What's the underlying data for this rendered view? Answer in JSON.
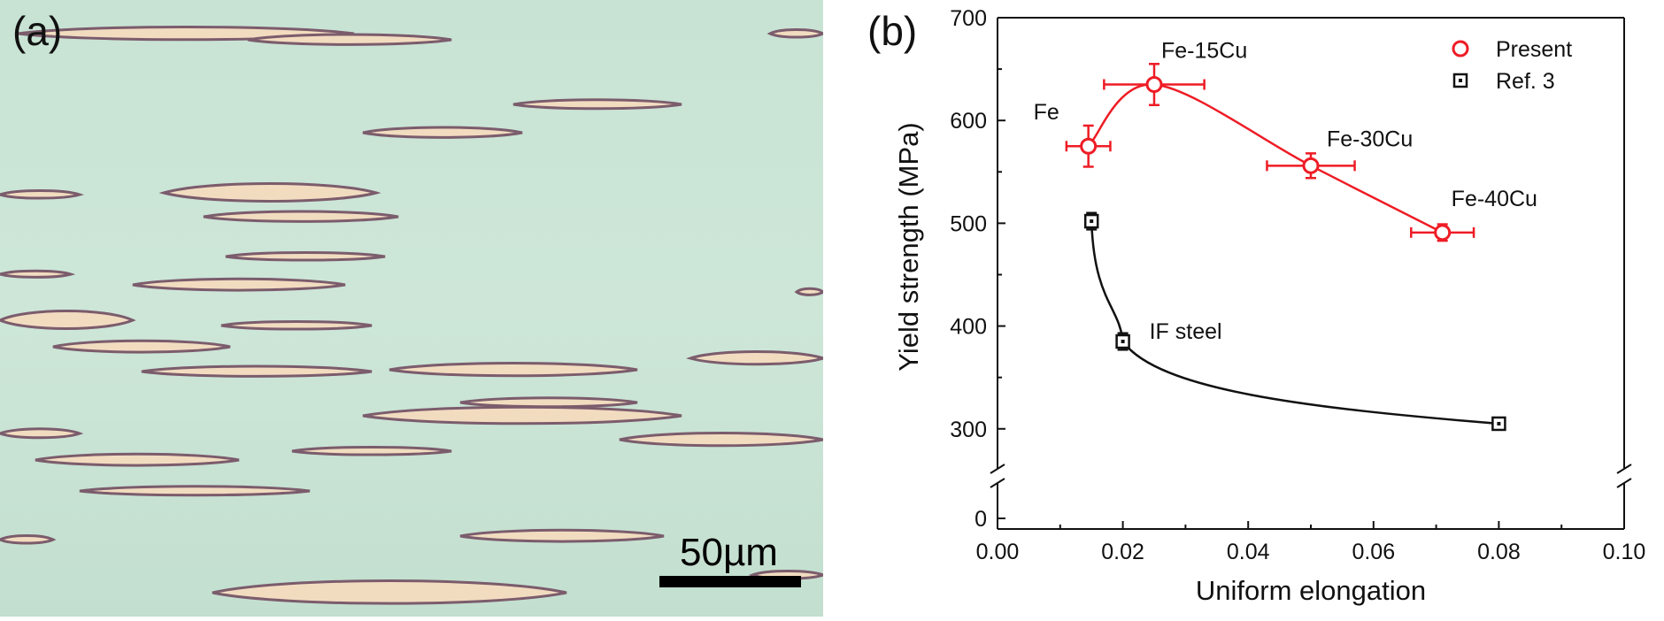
{
  "panel_a": {
    "label": "(a)",
    "scale_bar_label": "50µm"
  },
  "panel_b": {
    "label": "(b)"
  },
  "colors": {
    "matrix": "#c9e4d6",
    "lamella": "#f3ddc0",
    "lamella_edge": "#7a5a6a",
    "present": "#ee1c25",
    "ref": "#111111"
  },
  "chart_data": {
    "type": "scatter",
    "xlabel": "Uniform elongation",
    "ylabel": "Yield strength (MPa)",
    "xlim": [
      0.0,
      0.1
    ],
    "ylim": [
      0,
      700
    ],
    "axis_break": [
      10,
      280
    ],
    "x_ticks": [
      "0.00",
      "0.02",
      "0.04",
      "0.06",
      "0.08",
      "0.10"
    ],
    "y_ticks": [
      "0",
      "300",
      "400",
      "500",
      "600",
      "700"
    ],
    "legend_position": "top-right",
    "series": [
      {
        "name": "Present",
        "marker": "circle",
        "points": [
          {
            "label": "Fe",
            "x": 0.0145,
            "y": 575,
            "xerr": 0.0035,
            "yerr": 20
          },
          {
            "label": "Fe-15Cu",
            "x": 0.025,
            "y": 635,
            "xerr": 0.008,
            "yerr": 20
          },
          {
            "label": "Fe-30Cu",
            "x": 0.05,
            "y": 556,
            "xerr": 0.007,
            "yerr": 12
          },
          {
            "label": "Fe-40Cu",
            "x": 0.071,
            "y": 491,
            "xerr": 0.005,
            "yerr": 8
          }
        ]
      },
      {
        "name": "Ref. 3",
        "marker": "square",
        "points": [
          {
            "label": "",
            "x": 0.015,
            "y": 502,
            "xerr": 0.0,
            "yerr": 8
          },
          {
            "label": "IF steel",
            "x": 0.02,
            "y": 385,
            "xerr": 0.0,
            "yerr": 8
          },
          {
            "label": "",
            "x": 0.08,
            "y": 305,
            "xerr": 0.0,
            "yerr": 0
          }
        ]
      }
    ]
  }
}
